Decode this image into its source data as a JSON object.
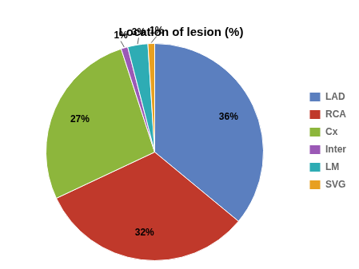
{
  "chart_data": {
    "type": "pie",
    "title": "Location of lesion (%)",
    "categories": [
      "LAD",
      "RCA",
      "Cx",
      "Inter",
      "LM",
      "SVG"
    ],
    "values": [
      36,
      32,
      27,
      1,
      3,
      1
    ],
    "value_labels": [
      "36%",
      "32%",
      "27%",
      "1%",
      "3%",
      "1%"
    ],
    "colors": [
      "#5B7FBF",
      "#C0392B",
      "#8DB63C",
      "#9B59B6",
      "#2EACB4",
      "#E8A020"
    ],
    "data_labels": true,
    "legend": "right"
  }
}
